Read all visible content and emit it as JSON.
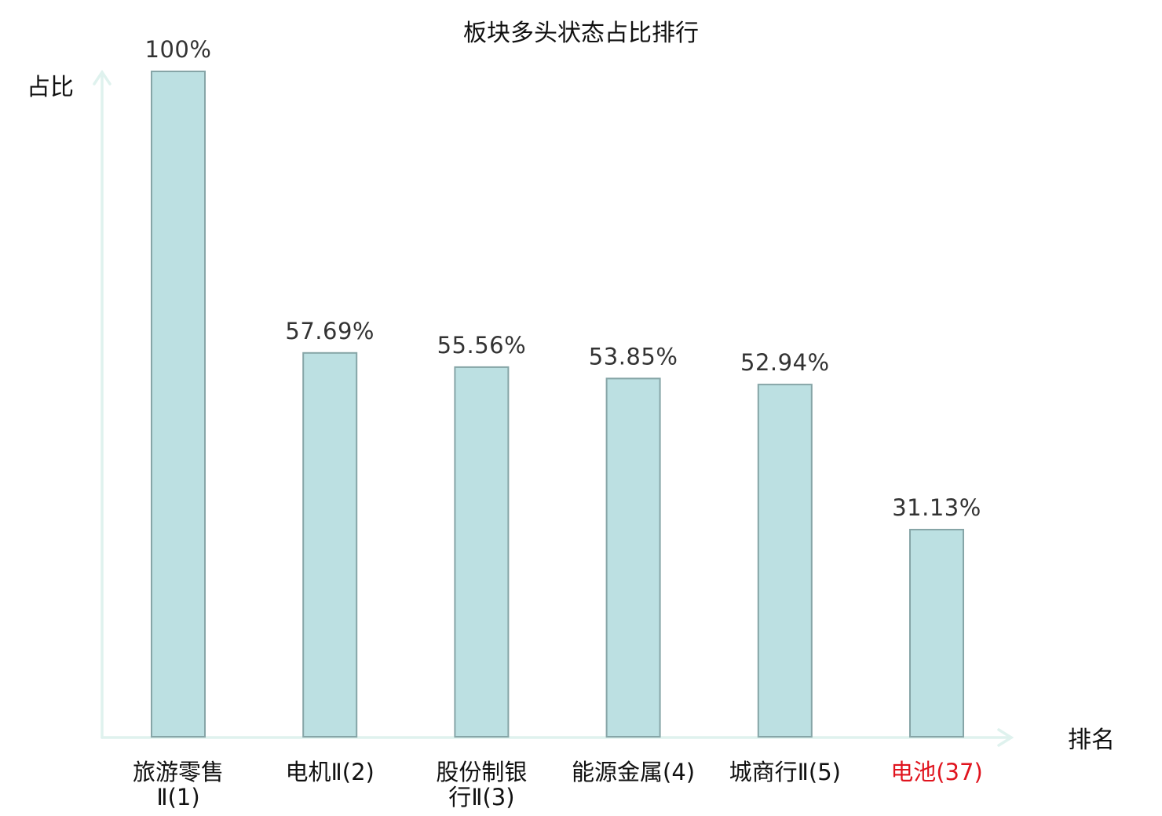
{
  "chart_data": {
    "type": "bar",
    "title": "板块多头状态占比排行",
    "ylabel": "占比",
    "xlabel": "排名",
    "ylim": [
      0,
      100
    ],
    "grid": false,
    "legend": "none",
    "categories": [
      {
        "lines": [
          "旅游零售",
          "Ⅱ(1)"
        ],
        "highlight": false
      },
      {
        "lines": [
          "电机Ⅱ(2)"
        ],
        "highlight": false
      },
      {
        "lines": [
          "股份制银",
          "行Ⅱ(3)"
        ],
        "highlight": false
      },
      {
        "lines": [
          "能源金属(4)"
        ],
        "highlight": false
      },
      {
        "lines": [
          "城商行Ⅱ(5)"
        ],
        "highlight": false
      },
      {
        "lines": [
          "电池(37)"
        ],
        "highlight": true
      }
    ],
    "values": [
      100,
      57.69,
      55.56,
      53.85,
      52.94,
      31.13
    ],
    "value_labels": [
      "100%",
      "57.69%",
      "55.56%",
      "53.85%",
      "52.94%",
      "31.13%"
    ],
    "colors": {
      "bar_fill": "#bce0e2",
      "bar_stroke": "#86a5a7",
      "axis": "#dff2ee",
      "text": "#111111",
      "value_text": "#333333",
      "highlight_text": "#e0141e"
    }
  }
}
